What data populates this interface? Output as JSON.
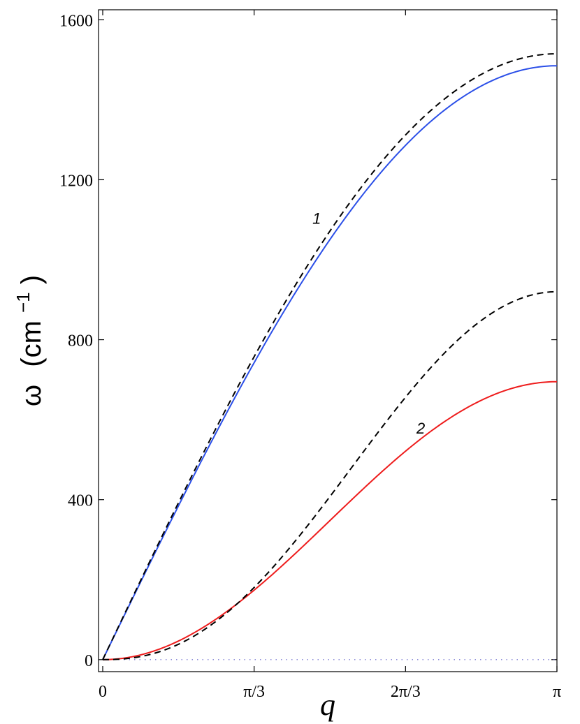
{
  "chart_data": {
    "type": "line",
    "xlabel": "q",
    "ylabel": "ω (cm⁻¹)",
    "ylabel_main": "ω",
    "ylabel_unit": "(cm",
    "ylabel_exp": "−1",
    "ylabel_close": ")",
    "xlim": [
      0,
      3.14159
    ],
    "ylim": [
      -30,
      1625
    ],
    "xticks": [
      {
        "value": 0,
        "label": "0"
      },
      {
        "value": 1.0472,
        "label": "π/3"
      },
      {
        "value": 2.0944,
        "label": "2π/3"
      },
      {
        "value": 3.14159,
        "label": "π"
      }
    ],
    "yticks": [
      {
        "value": 0,
        "label": "0"
      },
      {
        "value": 400,
        "label": "400"
      },
      {
        "value": 800,
        "label": "800"
      },
      {
        "value": 1200,
        "label": "1200"
      },
      {
        "value": 1600,
        "label": "1600"
      }
    ],
    "grid": false,
    "series": [
      {
        "id": "1",
        "style": "solid",
        "color": "#2b4fe8",
        "max": 1485,
        "form": "sin"
      },
      {
        "id": "1-dashed",
        "style": "dashed",
        "color": "#000000",
        "max": 1515,
        "form": "sin"
      },
      {
        "id": "2",
        "style": "solid",
        "color": "#ee1c1c",
        "max": 695,
        "form": "sin2"
      },
      {
        "id": "2-dashed",
        "style": "dashed",
        "color": "#000000",
        "max": 920,
        "form": "sin2p"
      },
      {
        "id": "zero",
        "style": "dotted",
        "color": "#6666cc",
        "max": 0,
        "form": "zero"
      }
    ],
    "annotations": [
      {
        "text": "1",
        "x": 1.48,
        "y": 1090
      },
      {
        "text": "2",
        "x": 2.2,
        "y": 565
      }
    ]
  }
}
